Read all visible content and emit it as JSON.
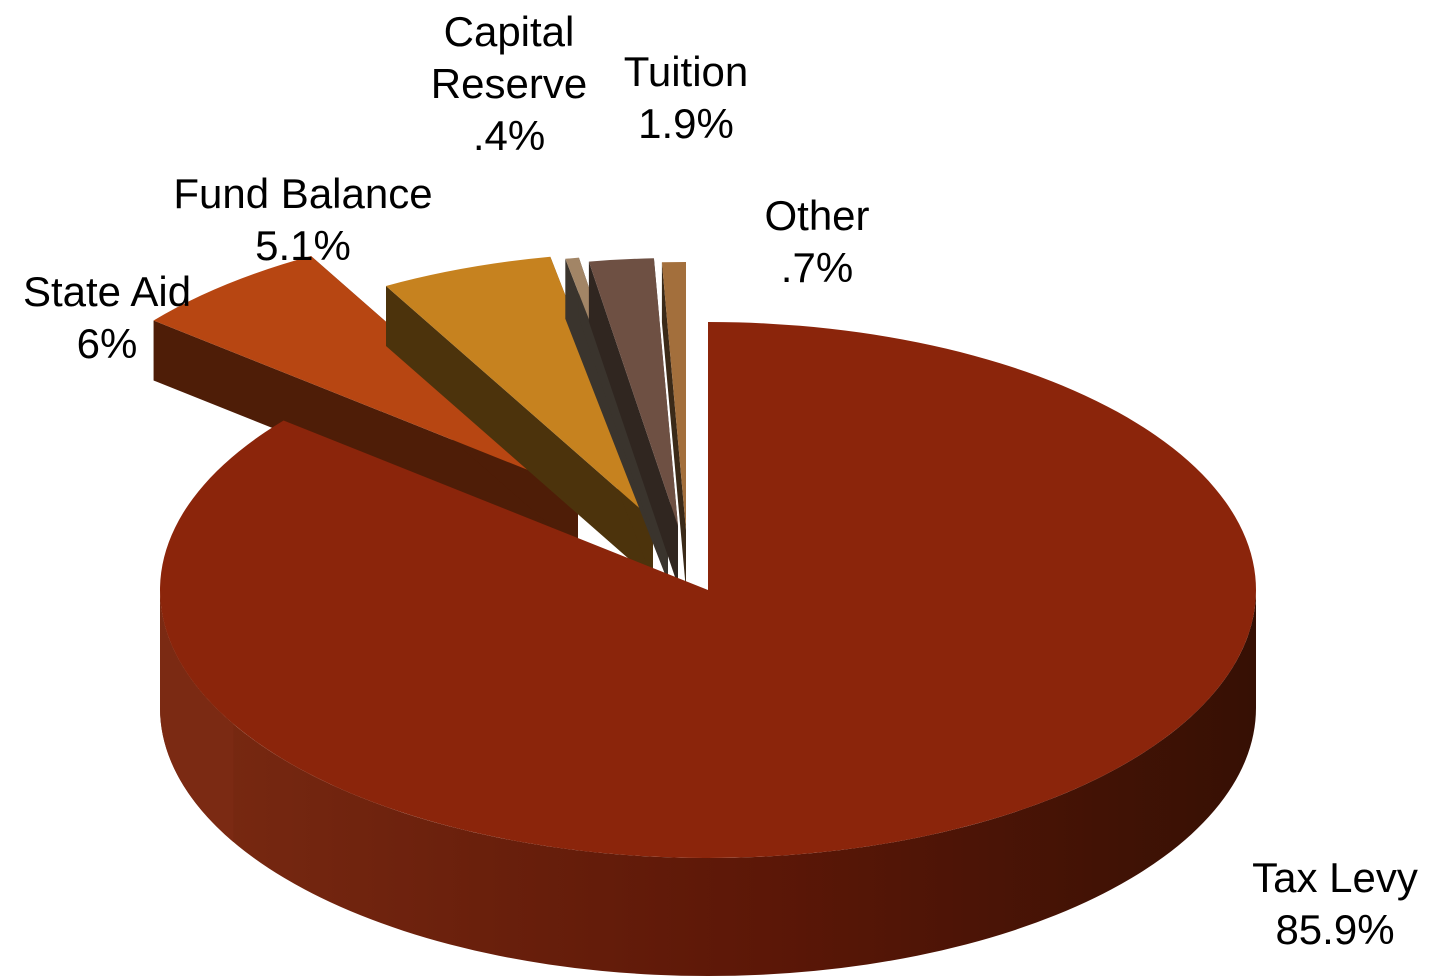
{
  "chart_data": {
    "type": "pie",
    "subtype": "3d-exploded",
    "title": "",
    "slices": [
      {
        "label": "Tax Levy",
        "value_label": "85.9%",
        "value": 85.9,
        "color": "#8b250b",
        "side_color": "#4a1205"
      },
      {
        "label": "State Aid",
        "value_label": "6%",
        "value": 6.0,
        "color": "#b74612",
        "side_color": "#4e1d07"
      },
      {
        "label": "Fund Balance",
        "value_label": "5.1%",
        "value": 5.1,
        "color": "#c6821f",
        "side_color": "#4c330c"
      },
      {
        "label": "Capital Reserve",
        "value_label": ".4%",
        "value": 0.4,
        "color": "#a28566",
        "side_color": "#3a342d"
      },
      {
        "label": "Tuition",
        "value_label": "1.9%",
        "value": 1.9,
        "color": "#6e5043",
        "side_color": "#302620"
      },
      {
        "label": "Other",
        "value_label": ".7%",
        "value": 0.7,
        "color": "#a36f3c",
        "side_color": "#3b2a18"
      }
    ]
  }
}
